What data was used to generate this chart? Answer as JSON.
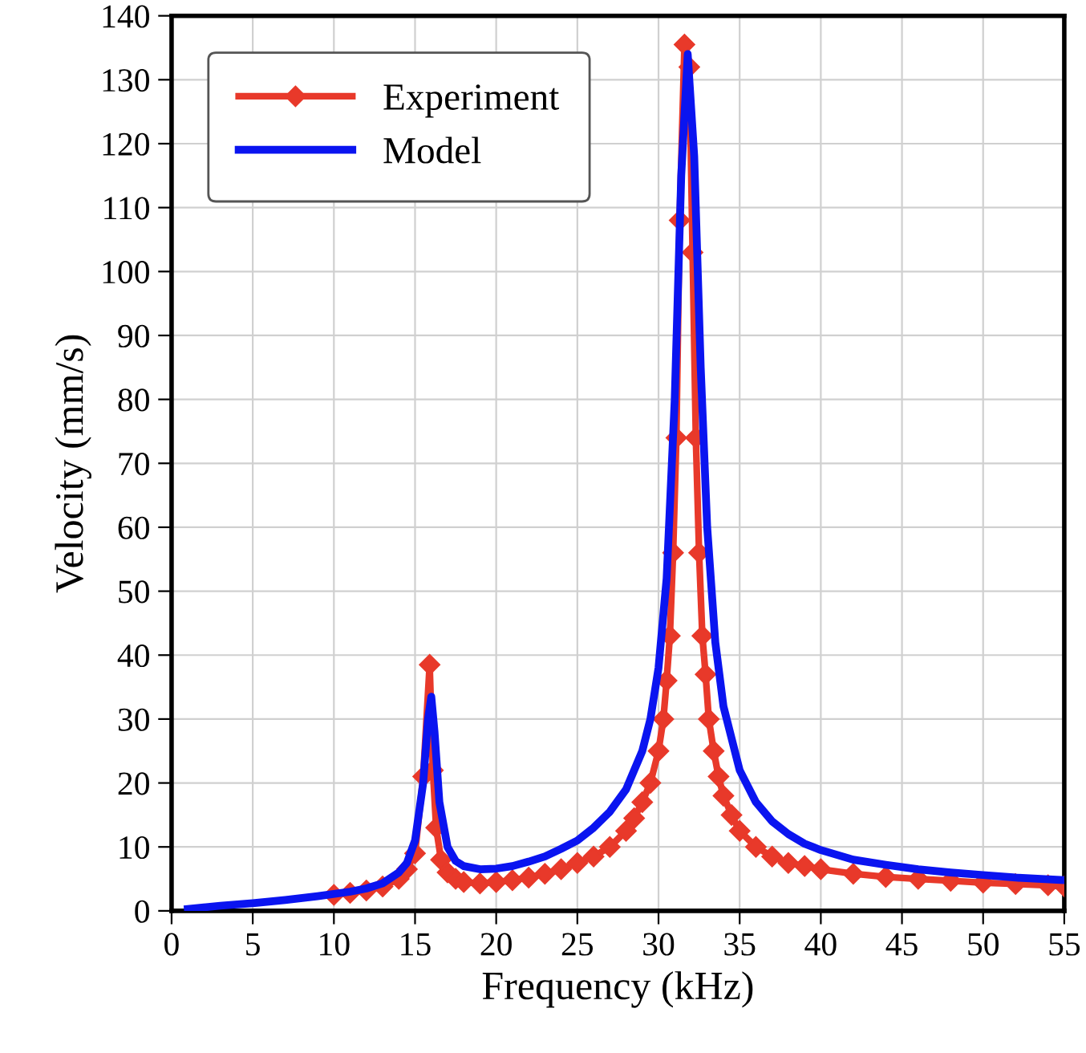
{
  "chart_data": {
    "type": "line",
    "xlabel": "Frequency (kHz)",
    "ylabel": "Velocity (mm/s)",
    "xlim": [
      0,
      55
    ],
    "ylim": [
      0,
      140
    ],
    "xticks": [
      0,
      5,
      10,
      15,
      20,
      25,
      30,
      35,
      40,
      45,
      50,
      55
    ],
    "yticks": [
      0,
      10,
      20,
      30,
      40,
      50,
      60,
      70,
      80,
      90,
      100,
      110,
      120,
      130,
      140
    ],
    "grid": true,
    "legend": "top left",
    "series": [
      {
        "name": "Experiment",
        "color": "#e8392a",
        "marker": "diamond",
        "x": [
          10,
          11,
          12,
          13,
          14,
          14.5,
          15,
          15.5,
          15.9,
          16.1,
          16.3,
          16.6,
          17,
          17.5,
          18,
          19,
          20,
          21,
          22,
          23,
          24,
          25,
          26,
          27,
          28,
          28.5,
          29,
          29.5,
          30,
          30.3,
          30.5,
          30.7,
          30.9,
          31.1,
          31.3,
          31.6,
          31.9,
          32.1,
          32.3,
          32.5,
          32.7,
          32.9,
          33.1,
          33.4,
          33.7,
          34,
          34.5,
          35,
          36,
          37,
          38,
          39,
          40,
          42,
          44,
          46,
          48,
          50,
          52,
          54,
          55
        ],
        "values": [
          2.5,
          2.8,
          3.2,
          3.8,
          5,
          6.5,
          9,
          21,
          38.5,
          22,
          13,
          8,
          6,
          5,
          4.5,
          4.3,
          4.5,
          4.8,
          5.2,
          5.8,
          6.5,
          7.5,
          8.5,
          10,
          12.5,
          14.5,
          17,
          20,
          25,
          30,
          36,
          43,
          56,
          74,
          108,
          135.5,
          132,
          103,
          74,
          56,
          43,
          37,
          30,
          25,
          21,
          18,
          15,
          12.5,
          10,
          8.5,
          7.5,
          7,
          6.5,
          5.8,
          5.3,
          5,
          4.7,
          4.4,
          4.2,
          4,
          3.8
        ]
      },
      {
        "name": "Model",
        "color": "#0a14f0",
        "marker": "none",
        "x": [
          1,
          3,
          5,
          7,
          9,
          11,
          12,
          13,
          14,
          14.5,
          15,
          15.5,
          15.8,
          16,
          16.2,
          16.5,
          17,
          17.5,
          18,
          19,
          20,
          21,
          22,
          23,
          24,
          25,
          26,
          27,
          28,
          29,
          29.5,
          30,
          30.5,
          31,
          31.4,
          31.8,
          32.2,
          32.6,
          33,
          33.5,
          34,
          35,
          36,
          37,
          38,
          39,
          40,
          42,
          44,
          46,
          48,
          50,
          52,
          55
        ],
        "values": [
          0.3,
          0.8,
          1.2,
          1.7,
          2.3,
          3,
          3.5,
          4.3,
          6,
          7.5,
          11,
          20,
          30,
          33.5,
          28,
          17,
          10,
          7.8,
          7,
          6.5,
          6.6,
          7,
          7.7,
          8.5,
          9.7,
          11,
          13,
          15.5,
          19,
          25,
          30,
          38,
          52,
          80,
          115,
          134,
          118,
          85,
          60,
          42,
          32,
          22,
          17,
          14,
          12,
          10.5,
          9.5,
          8,
          7.2,
          6.5,
          6,
          5.6,
          5.2,
          4.8
        ]
      }
    ]
  }
}
